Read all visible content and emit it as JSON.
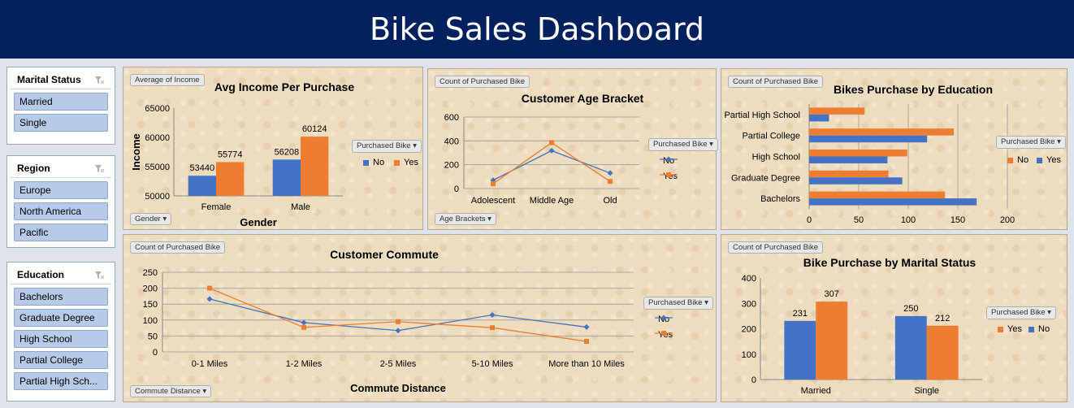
{
  "header": {
    "title": "Bike Sales Dashboard"
  },
  "colors": {
    "blue": "#4472c4",
    "orange": "#ed7d31",
    "header_bg": "#03215e"
  },
  "slicers": {
    "marital": {
      "title": "Marital Status",
      "items": [
        "Married",
        "Single"
      ]
    },
    "region": {
      "title": "Region",
      "items": [
        "Europe",
        "North America",
        "Pacific"
      ]
    },
    "education": {
      "title": "Education",
      "items": [
        "Bachelors",
        "Graduate Degree",
        "High School",
        "Partial College",
        "Partial High Sch..."
      ]
    }
  },
  "chart_data": [
    {
      "id": "income",
      "type": "bar",
      "title": "Avg Income Per Purchase",
      "value_button": "Average of Income",
      "axis_button": "Gender",
      "legend_title": "Purchased Bike",
      "xlabel": "Gender",
      "ylabel": "Income",
      "categories": [
        "Female",
        "Male"
      ],
      "series": [
        {
          "name": "No",
          "values": [
            53440,
            56208
          ]
        },
        {
          "name": "Yes",
          "values": [
            55774,
            60124
          ]
        }
      ],
      "ylim": [
        50000,
        65000
      ],
      "yticks": [
        50000,
        55000,
        60000,
        65000
      ],
      "data_labels": true,
      "grid": false,
      "legend": "right"
    },
    {
      "id": "age",
      "type": "line",
      "title": "Customer Age Bracket",
      "value_button": "Count of Purchased Bike",
      "axis_button": "Age Brackets",
      "legend_title": "Purchased Bike",
      "categories": [
        "Adolescent",
        "Middle Age",
        "Old"
      ],
      "series": [
        {
          "name": "No",
          "values": [
            70,
            318,
            130
          ]
        },
        {
          "name": "Yes",
          "values": [
            40,
            385,
            60
          ]
        }
      ],
      "ylim": [
        0,
        600
      ],
      "yticks": [
        0,
        200,
        400,
        600
      ],
      "grid": true,
      "legend": "right"
    },
    {
      "id": "education",
      "type": "bar",
      "orientation": "horizontal",
      "title": "Bikes Purchase by Education",
      "value_button": "Count of Purchased Bike",
      "legend_title": "Purchased Bike",
      "categories": [
        "Bachelors",
        "Graduate Degree",
        "High School",
        "Partial College",
        "Partial High School"
      ],
      "series": [
        {
          "name": "No",
          "values": [
            137,
            80,
            99,
            146,
            56
          ]
        },
        {
          "name": "Yes",
          "values": [
            169,
            94,
            79,
            119,
            20
          ]
        }
      ],
      "xlim": [
        0,
        200
      ],
      "xticks": [
        0,
        50,
        100,
        150,
        200
      ],
      "grid": true,
      "legend": "right"
    },
    {
      "id": "commute",
      "type": "line",
      "title": "Customer Commute",
      "value_button": "Count of Purchased Bike",
      "axis_button": "Commute Distance",
      "legend_title": "Purchased Bike",
      "xlabel": "Commute Distance",
      "categories": [
        "0-1 Miles",
        "1-2 Miles",
        "2-5 Miles",
        "5-10 Miles",
        "More than 10 Miles"
      ],
      "series": [
        {
          "name": "No",
          "values": [
            166,
            92,
            67,
            116,
            78
          ]
        },
        {
          "name": "Yes",
          "values": [
            200,
            77,
            95,
            76,
            33
          ]
        }
      ],
      "ylim": [
        0,
        250
      ],
      "yticks": [
        0,
        50,
        100,
        150,
        200,
        250
      ],
      "grid": true,
      "legend": "right"
    },
    {
      "id": "marital",
      "type": "bar",
      "title": "Bike Purchase by Marital Status",
      "value_button": "Count of Purchased Bike",
      "legend_title": "Purchased Bike",
      "categories": [
        "Married",
        "Single"
      ],
      "series": [
        {
          "name": "Yes",
          "values": [
            231,
            250
          ]
        },
        {
          "name": "No",
          "values": [
            307,
            212
          ]
        }
      ],
      "ylim": [
        0,
        400
      ],
      "yticks": [
        0,
        100,
        200,
        300,
        400
      ],
      "data_labels": true,
      "grid": false,
      "legend": "right"
    }
  ]
}
